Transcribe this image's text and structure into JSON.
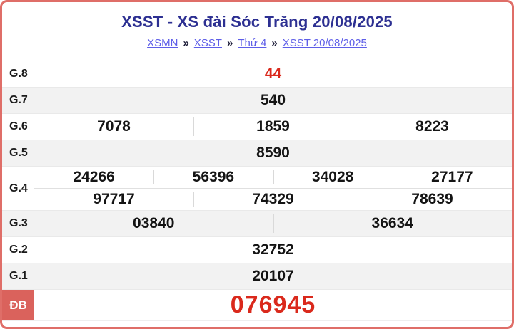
{
  "header": {
    "title": "XSST - XS đài Sóc Trăng 20/08/2025",
    "breadcrumb": {
      "separator": "»",
      "items": [
        "XSMN",
        "XSST",
        "Thứ 4",
        "XSST 20/08/2025"
      ]
    }
  },
  "results": {
    "rows": [
      {
        "label": "G.8",
        "values": [
          "44"
        ]
      },
      {
        "label": "G.7",
        "values": [
          "540"
        ]
      },
      {
        "label": "G.6",
        "values": [
          "7078",
          "1859",
          "8223"
        ]
      },
      {
        "label": "G.5",
        "values": [
          "8590"
        ]
      },
      {
        "label": "G.4",
        "line1": [
          "24266",
          "56396",
          "34028",
          "27177"
        ],
        "line2": [
          "97717",
          "74329",
          "78639"
        ]
      },
      {
        "label": "G.3",
        "values": [
          "03840",
          "36634"
        ]
      },
      {
        "label": "G.2",
        "values": [
          "32752"
        ]
      },
      {
        "label": "G.1",
        "values": [
          "20107"
        ]
      },
      {
        "label": "ĐB",
        "values": [
          "076945"
        ]
      }
    ]
  },
  "colors": {
    "title_navy": "#2d3092",
    "link_blue": "#5e5ee8",
    "highlight_red": "#da291c",
    "special_label_bg": "#da625c",
    "card_border": "#df6e68",
    "stripe_gray": "#f2f2f2"
  }
}
